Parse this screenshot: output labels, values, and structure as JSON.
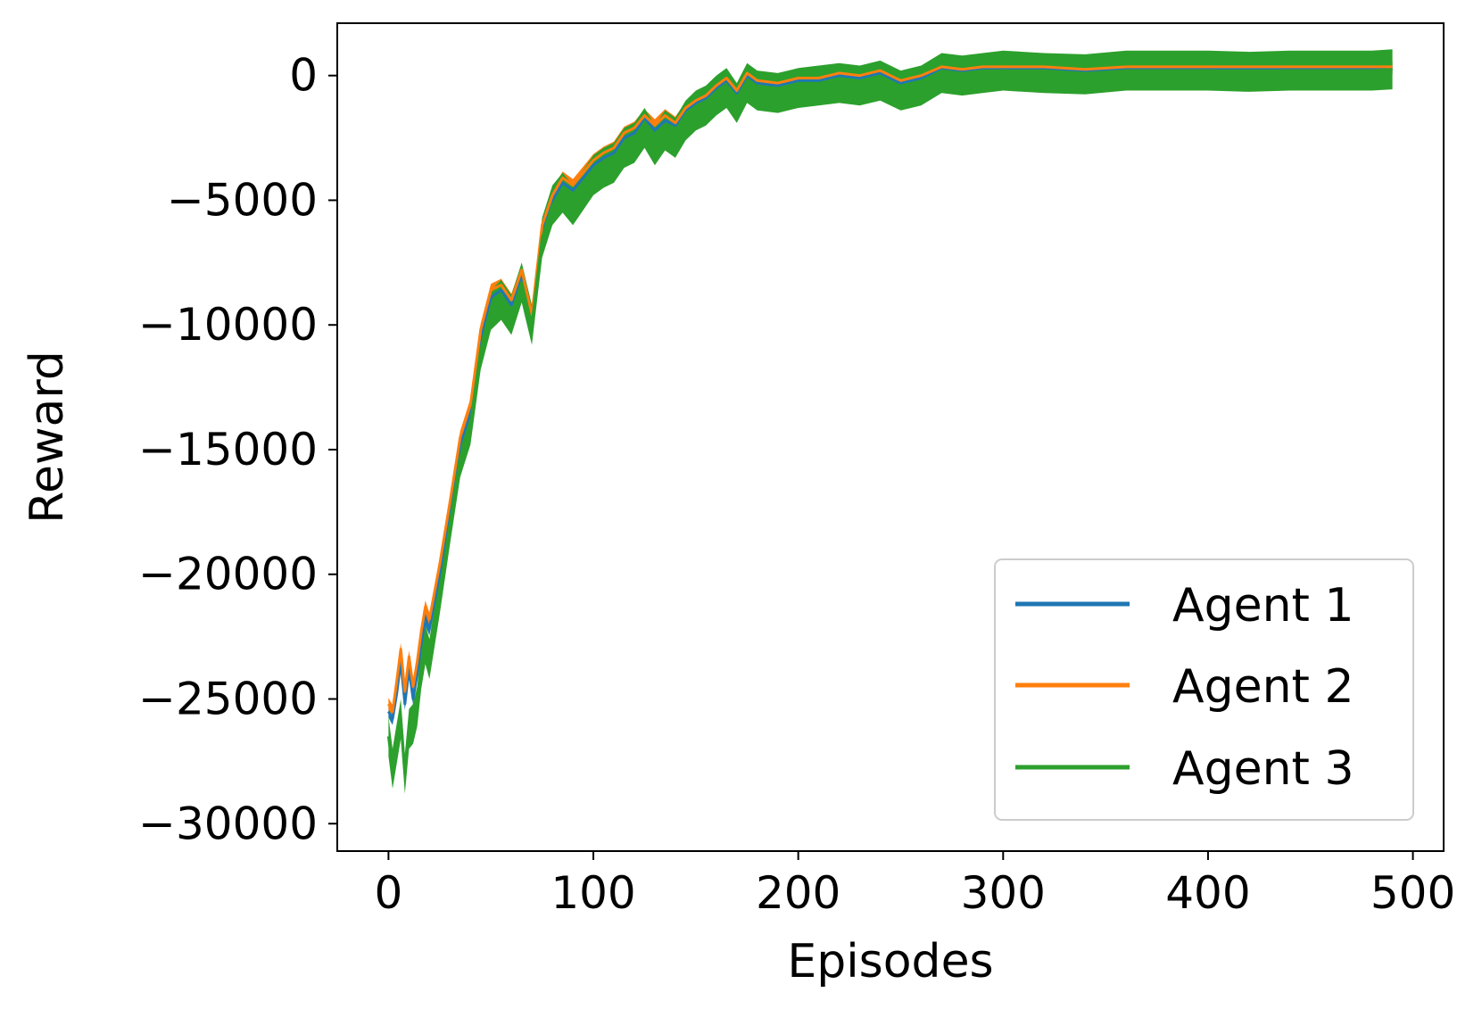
{
  "chart_data": {
    "type": "line",
    "title": "",
    "xlabel": "Episodes",
    "ylabel": "Reward",
    "xlim": [
      -25,
      515
    ],
    "ylim": [
      -31100,
      2100
    ],
    "xticks": [
      0,
      100,
      200,
      300,
      400,
      500
    ],
    "xtick_labels": [
      "0",
      "100",
      "200",
      "300",
      "400",
      "500"
    ],
    "yticks": [
      0,
      -5000,
      -10000,
      -15000,
      -20000,
      -25000,
      -30000
    ],
    "ytick_labels": [
      "0",
      "−5000",
      "−10000",
      "−15000",
      "−20000",
      "−25000",
      "−30000"
    ],
    "grid": false,
    "legend_position": "lower-right",
    "x": [
      0,
      2,
      4,
      6,
      8,
      10,
      12,
      14,
      16,
      18,
      20,
      25,
      30,
      35,
      40,
      45,
      50,
      55,
      60,
      65,
      70,
      75,
      80,
      85,
      90,
      95,
      100,
      105,
      110,
      115,
      120,
      125,
      130,
      135,
      140,
      145,
      150,
      155,
      160,
      165,
      170,
      175,
      180,
      190,
      200,
      210,
      220,
      230,
      240,
      250,
      260,
      270,
      280,
      290,
      300,
      320,
      340,
      360,
      380,
      400,
      420,
      440,
      460,
      480,
      490
    ],
    "series": [
      {
        "name": "Agent 1",
        "color": "#1f77b4",
        "band": 500,
        "values": [
          -25500,
          -25800,
          -24800,
          -23500,
          -25200,
          -23800,
          -25000,
          -24000,
          -22800,
          -21800,
          -22200,
          -20000,
          -17500,
          -14800,
          -13500,
          -10500,
          -8900,
          -8600,
          -9200,
          -8000,
          -9800,
          -6200,
          -5000,
          -4300,
          -4600,
          -4100,
          -3600,
          -3300,
          -3100,
          -2500,
          -2300,
          -1700,
          -2200,
          -1800,
          -2000,
          -1400,
          -1100,
          -900,
          -500,
          -200,
          -700,
          0,
          -300,
          -400,
          -200,
          -200,
          0,
          -100,
          100,
          -300,
          -100,
          300,
          200,
          300,
          300,
          300,
          200,
          300,
          300,
          300,
          300,
          300,
          300,
          300,
          300
        ]
      },
      {
        "name": "Agent 2",
        "color": "#ff7f0e",
        "band": 500,
        "values": [
          -25200,
          -25500,
          -24300,
          -23000,
          -24700,
          -23300,
          -24500,
          -23500,
          -22300,
          -21300,
          -21800,
          -19600,
          -17100,
          -14500,
          -13200,
          -10200,
          -8600,
          -8400,
          -9000,
          -7800,
          -9600,
          -6000,
          -4800,
          -4100,
          -4400,
          -3900,
          -3400,
          -3100,
          -2900,
          -2300,
          -2100,
          -1600,
          -2000,
          -1600,
          -1900,
          -1300,
          -1000,
          -800,
          -400,
          -100,
          -600,
          100,
          -200,
          -300,
          -100,
          -100,
          100,
          0,
          200,
          -200,
          0,
          350,
          250,
          350,
          350,
          350,
          250,
          350,
          350,
          350,
          350,
          350,
          350,
          350,
          350
        ]
      },
      {
        "name": "Agent 3",
        "color": "#2ca02c",
        "band": 1600,
        "values": [
          -26500,
          -27800,
          -26800,
          -25800,
          -28000,
          -26200,
          -26000,
          -25300,
          -23800,
          -22800,
          -23400,
          -20800,
          -18000,
          -15300,
          -14000,
          -11000,
          -9400,
          -9000,
          -9600,
          -8300,
          -10000,
          -6500,
          -5200,
          -4700,
          -5200,
          -4600,
          -4000,
          -3700,
          -3500,
          -2900,
          -2700,
          -2100,
          -2800,
          -2200,
          -2500,
          -1800,
          -1400,
          -1200,
          -800,
          -500,
          -1100,
          -300,
          -600,
          -700,
          -500,
          -400,
          -300,
          -400,
          -200,
          -600,
          -400,
          100,
          0,
          100,
          200,
          100,
          50,
          200,
          200,
          200,
          150,
          200,
          200,
          200,
          250
        ]
      }
    ]
  }
}
